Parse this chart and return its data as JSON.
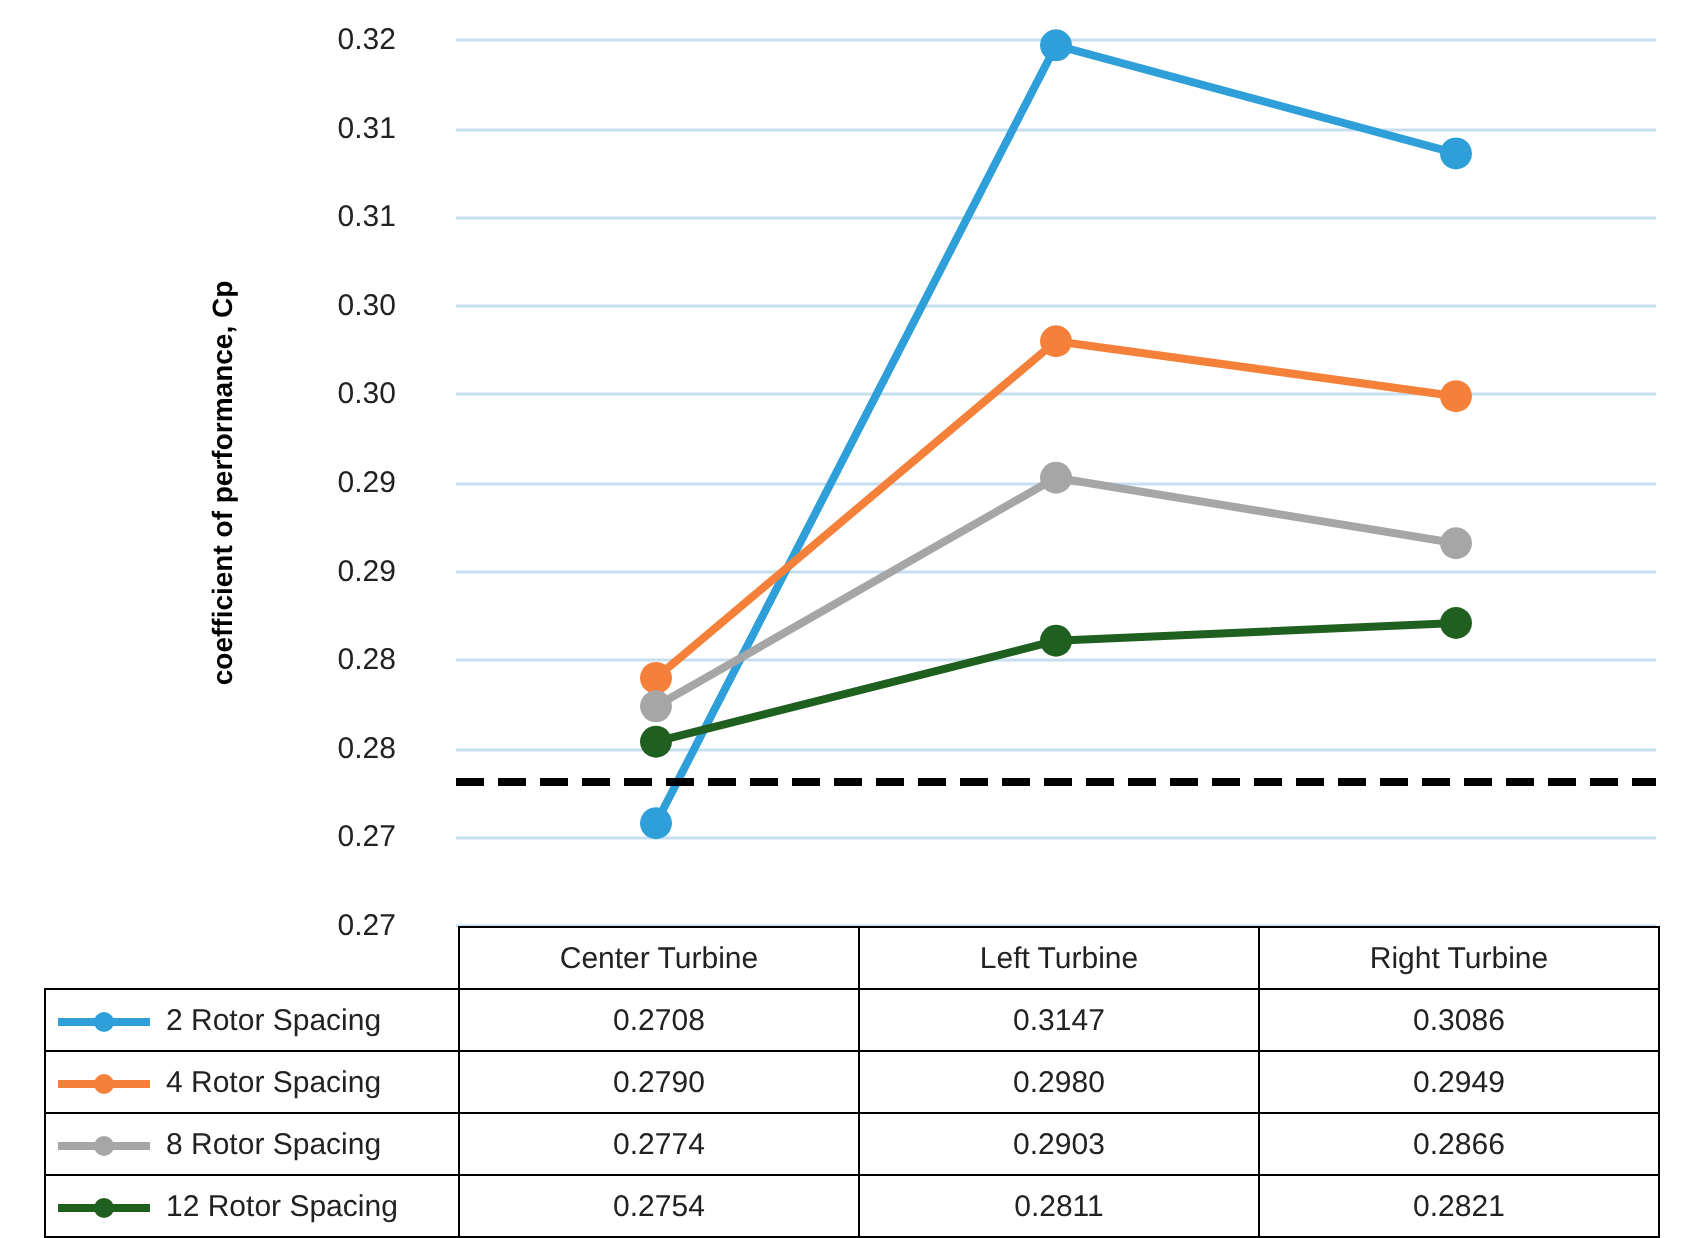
{
  "chart_data": {
    "type": "line",
    "ylabel": "coefficient of performance, Cp",
    "categories": [
      "Center Turbine",
      "Left Turbine",
      "Right Turbine"
    ],
    "series": [
      {
        "name": "2 Rotor Spacing",
        "color": "#2e9fd8",
        "values": [
          0.2708,
          0.3147,
          0.3086
        ],
        "value_labels": [
          "0.2708",
          "0.3147",
          "0.3086"
        ]
      },
      {
        "name": "4 Rotor Spacing",
        "color": "#f5803a",
        "values": [
          0.279,
          0.298,
          0.2949
        ],
        "value_labels": [
          "0.2790",
          "0.2980",
          "0.2949"
        ]
      },
      {
        "name": "8 Rotor Spacing",
        "color": "#a6a6a6",
        "values": [
          0.2774,
          0.2903,
          0.2866
        ],
        "value_labels": [
          "0.2774",
          "0.2903",
          "0.2866"
        ]
      },
      {
        "name": "12 Rotor Spacing",
        "color": "#1f5f1f",
        "values": [
          0.2754,
          0.2811,
          0.2821
        ],
        "value_labels": [
          "0.2754",
          "0.2811",
          "0.2821"
        ]
      }
    ],
    "ylim": [
      0.265,
      0.315
    ],
    "yticks": [
      {
        "value": 0.265,
        "label": "0.27"
      },
      {
        "value": 0.27,
        "label": "0.27"
      },
      {
        "value": 0.275,
        "label": "0.28"
      },
      {
        "value": 0.28,
        "label": "0.28"
      },
      {
        "value": 0.285,
        "label": "0.29"
      },
      {
        "value": 0.29,
        "label": "0.29"
      },
      {
        "value": 0.295,
        "label": "0.30"
      },
      {
        "value": 0.3,
        "label": "0.30"
      },
      {
        "value": 0.305,
        "label": "0.31"
      },
      {
        "value": 0.31,
        "label": "0.31"
      },
      {
        "value": 0.315,
        "label": "0.32"
      }
    ],
    "ref_lines": [
      {
        "axis": "y",
        "value": 0.2732,
        "color": "#000000",
        "line_style": "dashed"
      }
    ],
    "grid": true,
    "legend": "bottom",
    "marker": "circle"
  }
}
